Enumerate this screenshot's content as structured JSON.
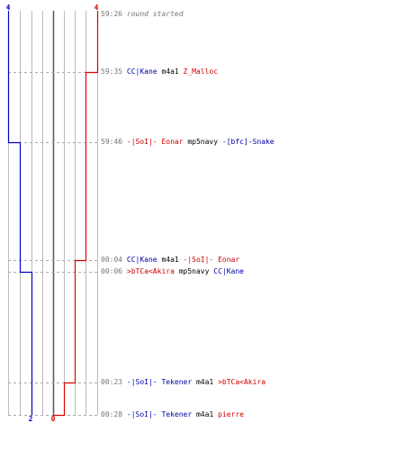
{
  "colors": {
    "blue_team": "#0000cc",
    "red_team": "#dd0000",
    "blue_text": "#0000a8",
    "red_text": "#cc0000",
    "grid": "#bbbbbb",
    "center_line": "#555555",
    "dash": "#aaaaaa",
    "muted_text": "#777777"
  },
  "chart_data": {
    "type": "line",
    "x": [
      "59:26",
      "59:35",
      "59:46",
      "00:04",
      "00:06",
      "00:23",
      "00:28"
    ],
    "series": [
      {
        "color": "#0000cc",
        "values": [
          4,
          4,
          3,
          3,
          2,
          2,
          2
        ]
      },
      {
        "color": "#dd0000",
        "values": [
          4,
          3,
          3,
          2,
          2,
          1,
          0
        ]
      }
    ],
    "ylim": [
      0,
      4
    ],
    "grid": true,
    "start_labels": {
      "blue": "4",
      "red": "4"
    },
    "end_labels": {
      "blue": "2",
      "red": "0"
    }
  },
  "events": [
    {
      "time": "59:26",
      "parts": [
        {
          "text": "round started",
          "color": "muted"
        }
      ]
    },
    {
      "time": "59:35",
      "parts": [
        {
          "text": "CC|Kane",
          "color": "blue"
        },
        {
          "text": " m4a1 ",
          "color": "black"
        },
        {
          "text": "Z_Malloc",
          "color": "red"
        }
      ]
    },
    {
      "time": "59:46",
      "parts": [
        {
          "text": "-|SoI|- Eonar",
          "color": "red"
        },
        {
          "text": " mp5navy ",
          "color": "black"
        },
        {
          "text": "-[bfc]-Snake",
          "color": "blue"
        }
      ]
    },
    {
      "time": "00:04",
      "parts": [
        {
          "text": "CC|Kane",
          "color": "blue"
        },
        {
          "text": " m4a1 ",
          "color": "black"
        },
        {
          "text": "-|SoI|- Eonar",
          "color": "red"
        }
      ]
    },
    {
      "time": "00:06",
      "parts": [
        {
          "text": ">bTCa<Akira",
          "color": "red"
        },
        {
          "text": " mp5navy ",
          "color": "black"
        },
        {
          "text": "CC|Kane",
          "color": "blue"
        }
      ]
    },
    {
      "time": "00:23",
      "parts": [
        {
          "text": "-|SoI|- Tekener",
          "color": "blue"
        },
        {
          "text": " m4a1 ",
          "color": "black"
        },
        {
          "text": ">bTCa<Akira",
          "color": "red"
        }
      ]
    },
    {
      "time": "00:28",
      "parts": [
        {
          "text": "-|SoI|- Tekener",
          "color": "blue"
        },
        {
          "text": " m4a1 ",
          "color": "black"
        },
        {
          "text": "pierre",
          "color": "red"
        }
      ]
    }
  ]
}
